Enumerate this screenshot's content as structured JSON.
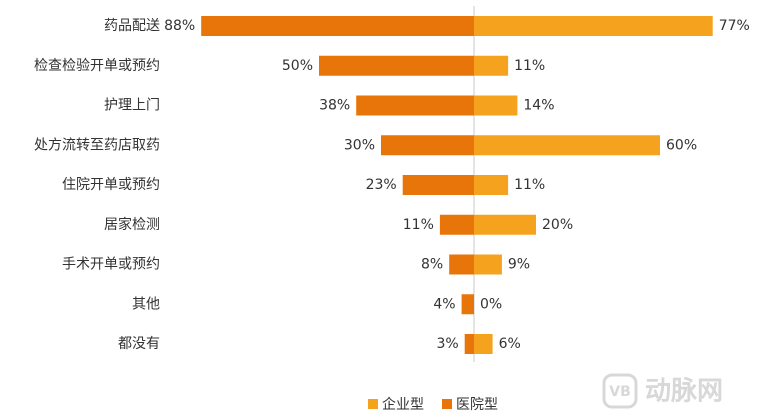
{
  "chart_data": {
    "type": "butterfly",
    "categories": [
      "药品配送",
      "检查检验开单或预约",
      "护理上门",
      "处方流转至药店取药",
      "住院开单或预约",
      "居家检测",
      "手术开单或预约",
      "其他",
      "都没有"
    ],
    "series": [
      {
        "name": "企业型",
        "color": "#F5A21F",
        "side": "right",
        "values": [
          77,
          11,
          14,
          60,
          11,
          20,
          9,
          0,
          6
        ],
        "value_labels": [
          "77%",
          "11%",
          "14%",
          "60%",
          "11%",
          "20%",
          "9%",
          "0%",
          "6%"
        ]
      },
      {
        "name": "医院型",
        "color": "#E8750A",
        "side": "left",
        "values": [
          88,
          50,
          38,
          30,
          23,
          11,
          8,
          4,
          3
        ],
        "value_labels": [
          "88%",
          "50%",
          "38%",
          "30%",
          "23%",
          "11%",
          "8%",
          "4%",
          "3%"
        ]
      }
    ],
    "watermark": "动脉网"
  }
}
